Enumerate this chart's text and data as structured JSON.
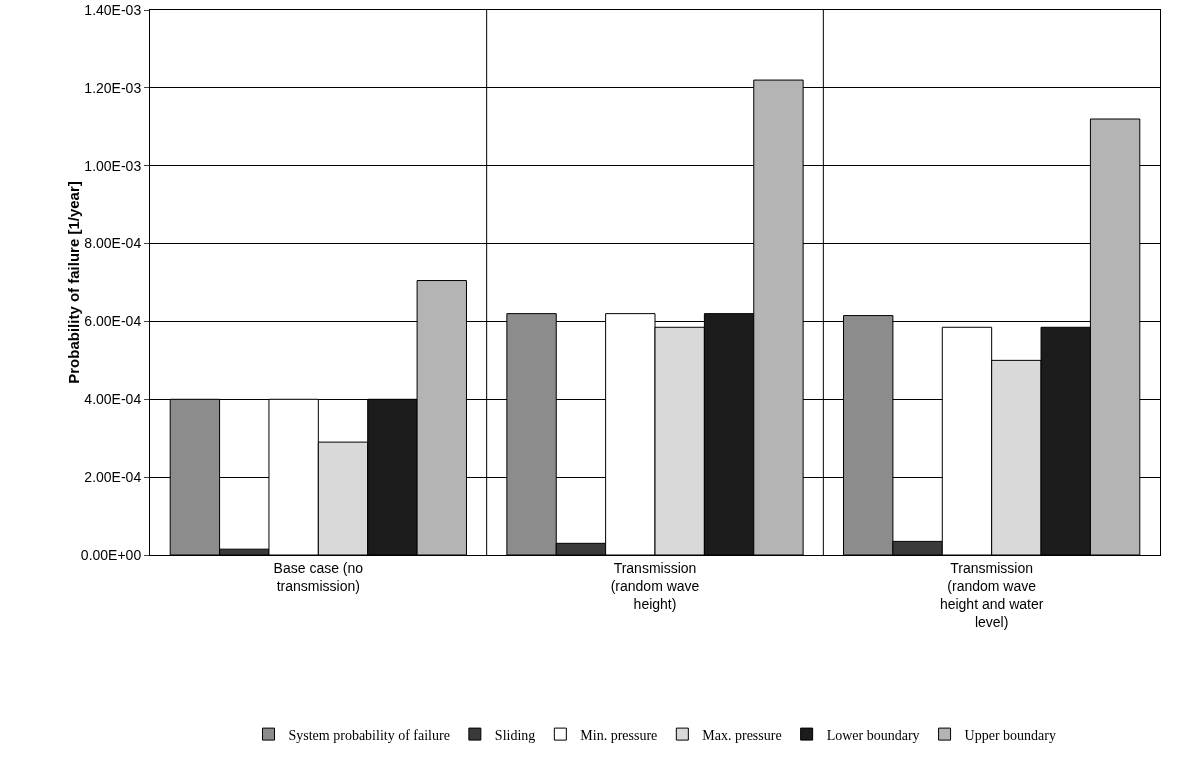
{
  "chart_data": {
    "type": "bar",
    "ylabel": "Probability of failure [1/year]",
    "categories": [
      "Base case (no transmission)",
      "Transmission (random wave height)",
      "Transmission (random wave height and water level)"
    ],
    "series": [
      {
        "name": "System probability of failure",
        "color": "#8c8c8c",
        "values": [
          0.0004,
          0.00062,
          0.000615
        ]
      },
      {
        "name": "Sliding",
        "color": "#3a3a3a",
        "values": [
          1.5e-05,
          3e-05,
          3.5e-05
        ]
      },
      {
        "name": "Min. pressure",
        "color": "#ffffff",
        "values": [
          0.0004,
          0.00062,
          0.000585
        ]
      },
      {
        "name": "Max. pressure",
        "color": "#d9d9d9",
        "values": [
          0.00029,
          0.000585,
          0.0005
        ]
      },
      {
        "name": "Lower boundary",
        "color": "#1c1c1c",
        "values": [
          0.0004,
          0.00062,
          0.000585
        ]
      },
      {
        "name": "Upper boundary",
        "color": "#b4b4b4",
        "values": [
          0.000705,
          0.00122,
          0.00112
        ]
      }
    ],
    "ylim": [
      0,
      0.0014
    ],
    "yticks": [
      {
        "value": 0,
        "label": "0.00E+00"
      },
      {
        "value": 0.0002,
        "label": "2.00E-04"
      },
      {
        "value": 0.0004,
        "label": "4.00E-04"
      },
      {
        "value": 0.0006,
        "label": "6.00E-04"
      },
      {
        "value": 0.0008,
        "label": "8.00E-04"
      },
      {
        "value": 0.001,
        "label": "1.00E-03"
      },
      {
        "value": 0.0012,
        "label": "1.20E-03"
      },
      {
        "value": 0.0014,
        "label": "1.40E-03"
      }
    ],
    "grid": true,
    "legend": "bottom"
  }
}
